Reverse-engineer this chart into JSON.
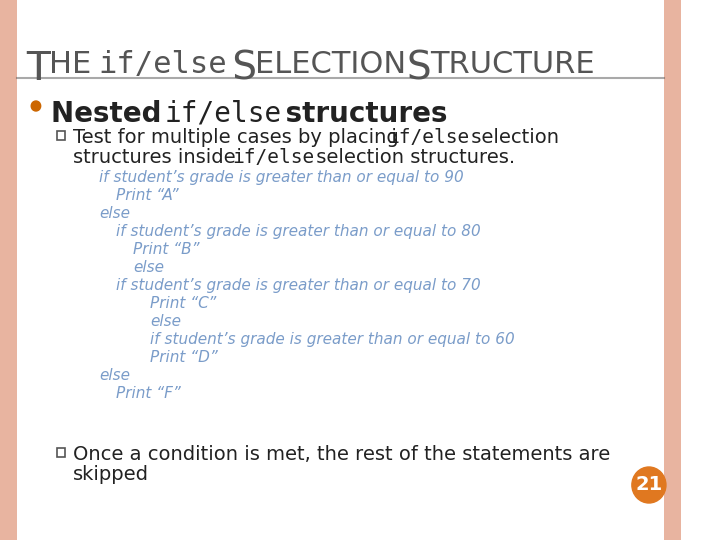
{
  "bg_color": "#ffffff",
  "border_color": "#e8b4a0",
  "title_text_parts": [
    {
      "text": "T",
      "style": "normal"
    },
    {
      "text": "HE ",
      "style": "smallcaps"
    },
    {
      "text": "if/else",
      "style": "mono"
    },
    {
      "text": " S",
      "style": "normal"
    },
    {
      "text": "ELECTION ",
      "style": "smallcaps"
    },
    {
      "text": "S",
      "style": "normal"
    },
    {
      "text": "TRUCTURE",
      "style": "smallcaps"
    }
  ],
  "title_color": "#555555",
  "title_fontsize": 28,
  "bullet_color": "#cc6600",
  "bullet1_text_normal": "Nested ",
  "bullet1_text_mono": "if/else",
  "bullet1_text_end": " structures",
  "bullet1_fontsize": 20,
  "sub_bullet_color": "#333333",
  "sub_bullet1_line1_normal1": "Test for multiple cases by placing ",
  "sub_bullet1_line1_mono": "if/else",
  "sub_bullet1_line1_normal2": " selection",
  "sub_bullet1_line2_normal1": "structures inside ",
  "sub_bullet1_line2_mono": "if/else",
  "sub_bullet1_line2_normal2": " selection structures.",
  "sub_bullet_fontsize": 15,
  "code_color": "#7a9cc9",
  "code_lines": [
    {
      "text": "if student’s grade is greater than or equal to 90",
      "indent": 0
    },
    {
      "text": "Print “A”",
      "indent": 1
    },
    {
      "text": "else",
      "indent": 0
    },
    {
      "text": "if student’s grade is greater than or equal to 80",
      "indent": 1
    },
    {
      "text": "Print “B”",
      "indent": 2
    },
    {
      "text": "else",
      "indent": 2
    },
    {
      "text": "if student’s grade is greater than or equal to 70",
      "indent": 1
    },
    {
      "text": "Print “C”",
      "indent": 3
    },
    {
      "text": "else",
      "indent": 3
    },
    {
      "text": "if student’s grade is greater than or equal to 60",
      "indent": 3
    },
    {
      "text": "Print “D”",
      "indent": 3
    },
    {
      "text": "else",
      "indent": 0
    },
    {
      "text": "Print “F”",
      "indent": 1
    }
  ],
  "code_fontsize": 11,
  "bullet2_normal1": "Once a condition is met, the rest of the statements are",
  "bullet2_normal2": "skipped",
  "bullet2_fontsize": 15,
  "page_num": "21",
  "page_circle_color": "#e07820",
  "page_num_color": "#ffffff",
  "page_num_fontsize": 14
}
